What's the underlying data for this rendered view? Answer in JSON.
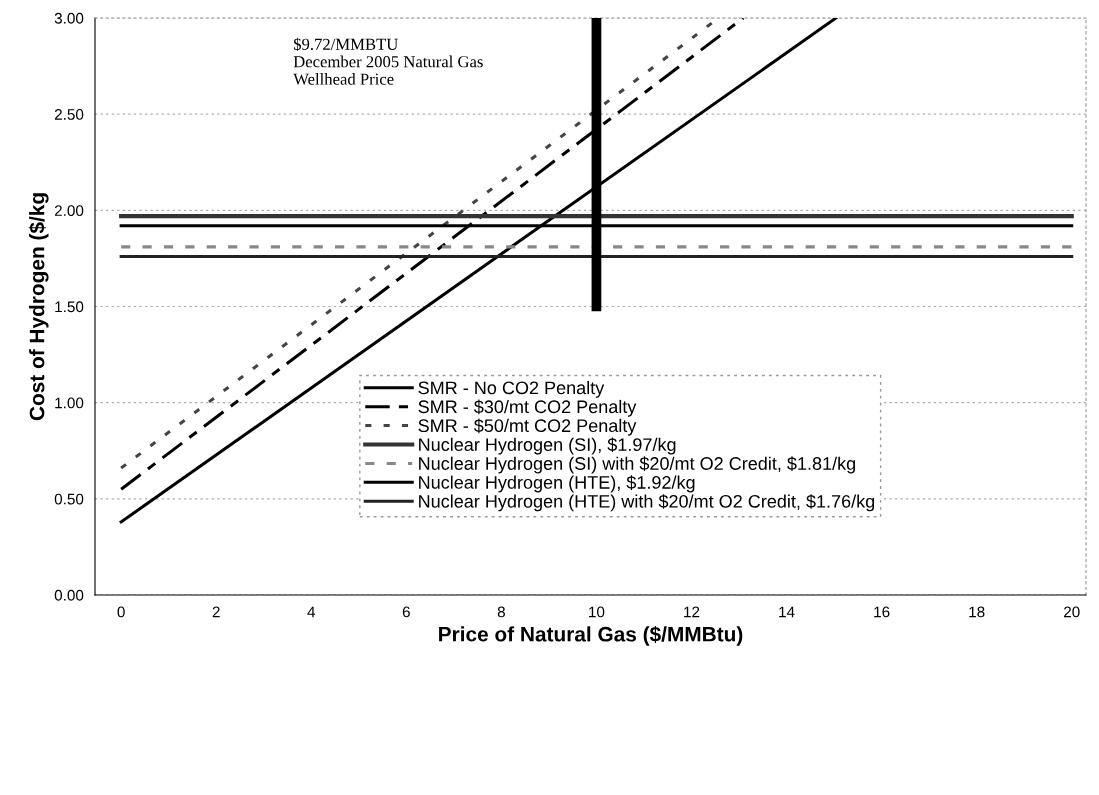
{
  "chart_data": {
    "type": "line",
    "xlabel": "Price of Natural Gas ($/MMBtu)",
    "ylabel": "Cost of Hydrogen ($/kg",
    "xlim": [
      -0.55,
      20.3
    ],
    "xticks": [
      0,
      2,
      4,
      6,
      8,
      10,
      12,
      14,
      16,
      18,
      20
    ],
    "ylim": [
      0,
      3.0
    ],
    "yticks": [
      {
        "value": 0,
        "label": "0.00"
      },
      {
        "value": 0.5,
        "label": "0.50"
      },
      {
        "value": 1.0,
        "label": "1.00"
      },
      {
        "value": 1.5,
        "label": "1.50"
      },
      {
        "value": 2.0,
        "label": "2.00"
      },
      {
        "value": 2.5,
        "label": "2.50"
      },
      {
        "value": 3.0,
        "label": "3.00"
      }
    ],
    "grid": "y",
    "legend": "bottom",
    "marker": "none",
    "series": [
      {
        "name": "SMR - No CO2 Penalty",
        "color": "#000000",
        "line_style": "solid",
        "x": [
          0,
          15.04
        ],
        "values": [
          0.38,
          3.0
        ]
      },
      {
        "name": "SMR - $30/mt CO2 Penalty",
        "color": "#000000",
        "line_style": "dashed",
        "x": [
          0,
          13.09
        ],
        "values": [
          0.55,
          3.0
        ]
      },
      {
        "name": "SMR - $50/mt CO2 Penalty",
        "color": "#444444",
        "line_style": "dotted",
        "x": [
          0,
          12.57
        ],
        "values": [
          0.66,
          3.0
        ]
      },
      {
        "name": "Nuclear Hydrogen (SI), $1.97/kg",
        "color": "#333333",
        "line_style": "solid",
        "x": [
          0,
          20
        ],
        "values": [
          1.97,
          1.97
        ]
      },
      {
        "name": "Nuclear Hydrogen (SI) with $20/mt O2 Credit, $1.81/kg",
        "color": "#888888",
        "line_style": "dashed",
        "x": [
          0,
          20
        ],
        "values": [
          1.81,
          1.81
        ]
      },
      {
        "name": "Nuclear Hydrogen (HTE), $1.92/kg",
        "color": "#000000",
        "line_style": "solid",
        "x": [
          0,
          20
        ],
        "values": [
          1.92,
          1.92
        ]
      },
      {
        "name": "Nuclear Hydrogen (HTE) with $20/mt O2 Credit, $1.76/kg",
        "color": "#222222",
        "line_style": "solid",
        "x": [
          0,
          20
        ],
        "values": [
          1.76,
          1.76
        ]
      },
      {
        "color": "#000000",
        "line_style": "solid",
        "x": [
          10,
          10
        ],
        "values": [
          1.5,
          3.0
        ]
      }
    ],
    "annotations": [
      "$9.72/MMBTU\nDecember 2005 Natural Gas\nWellhead Price"
    ]
  }
}
